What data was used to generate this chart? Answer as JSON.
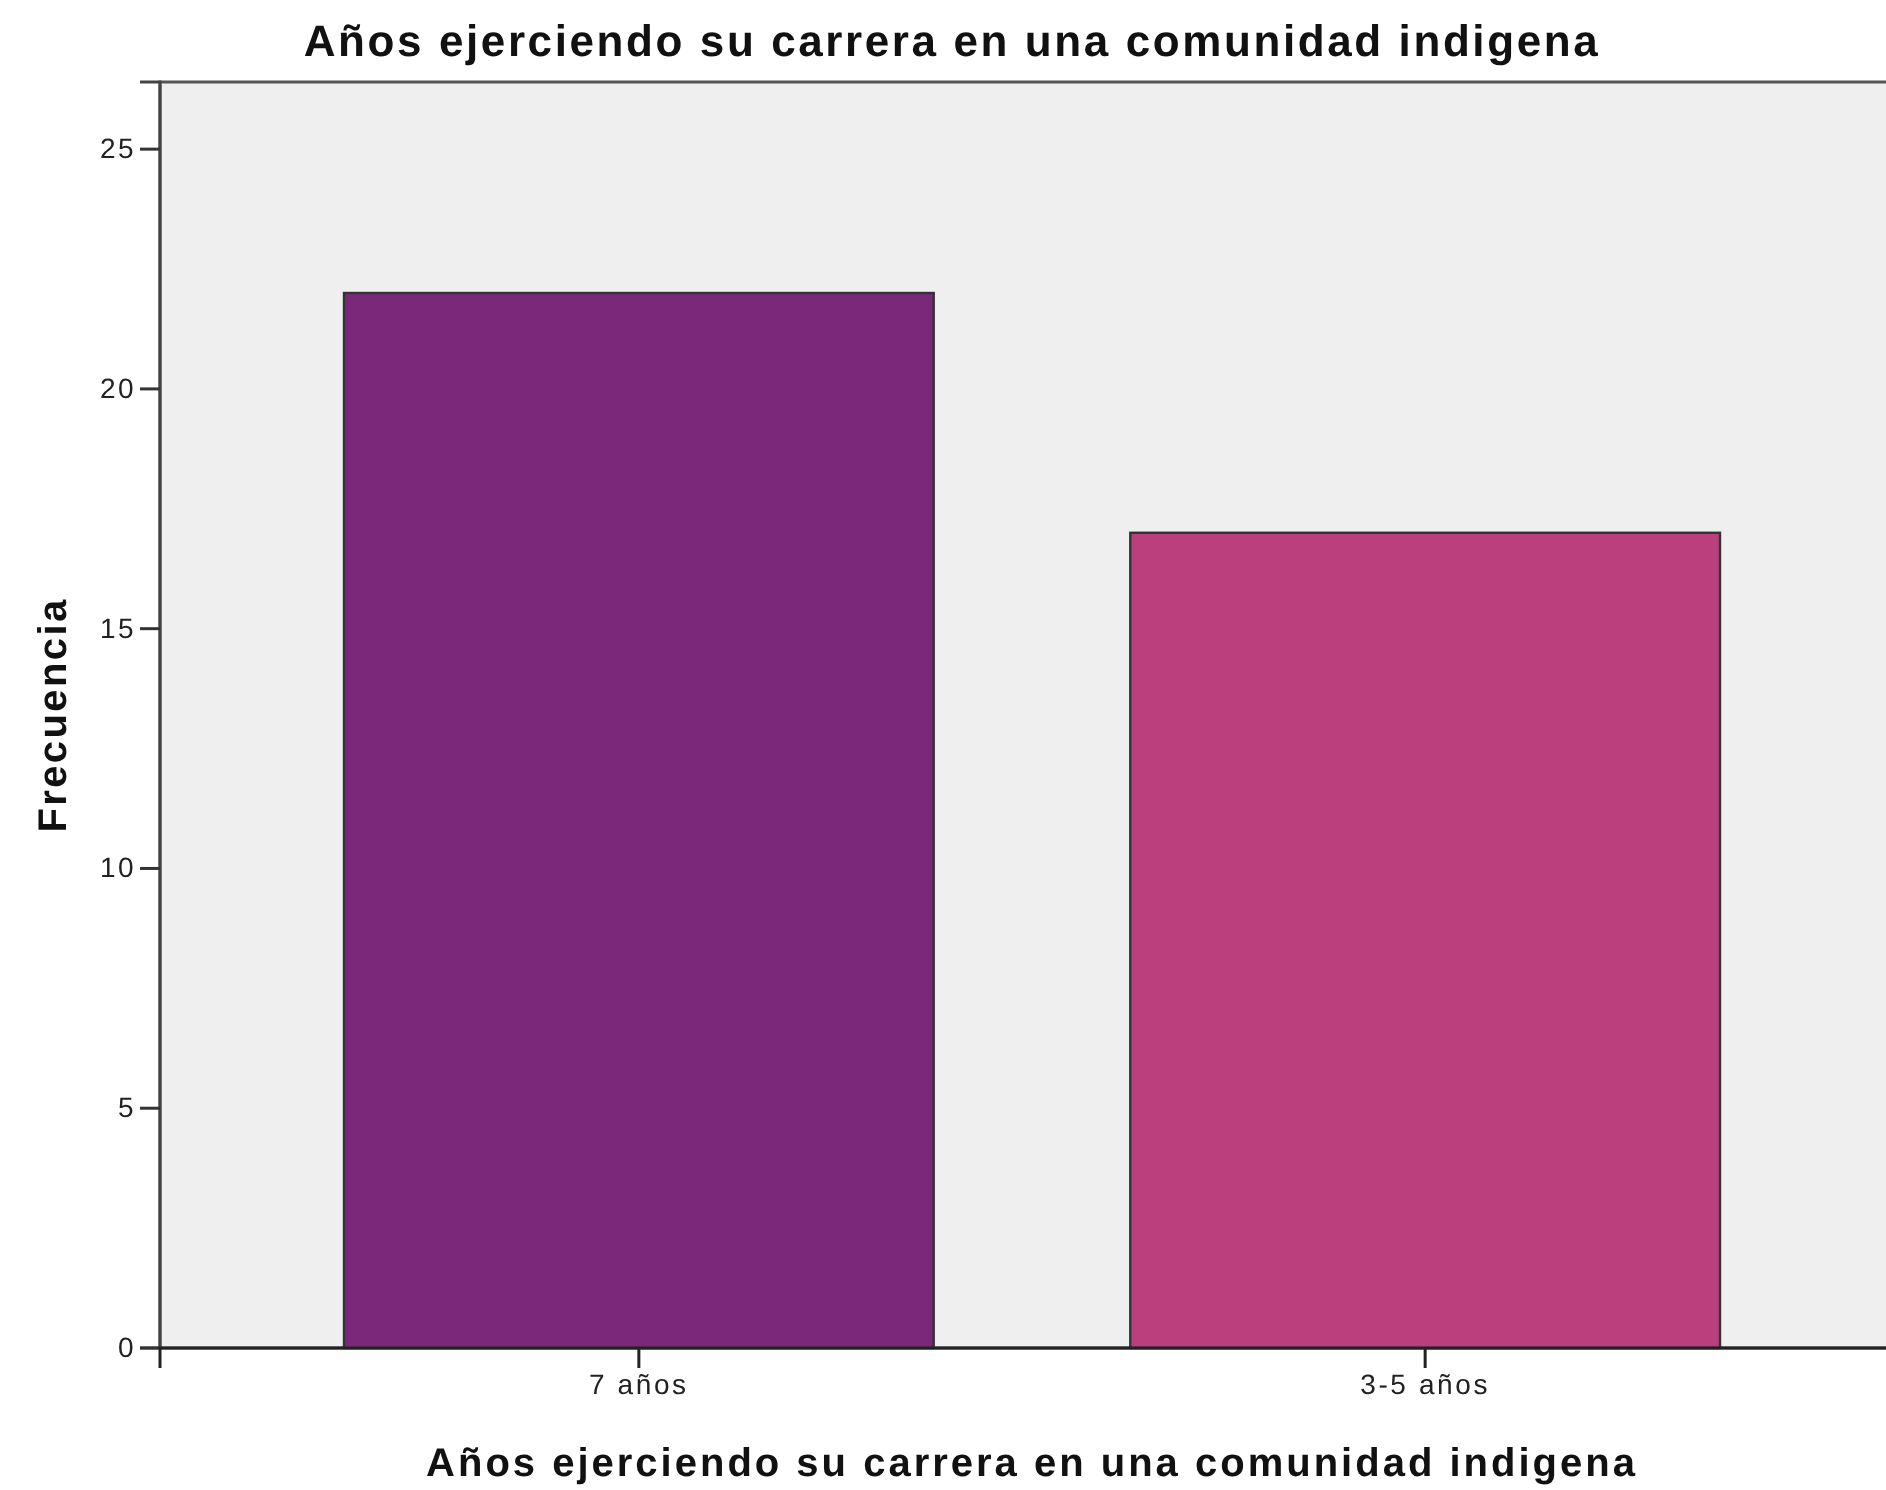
{
  "chart_data": {
    "type": "bar",
    "title": "Años ejerciendo su carrera en una comunidad indigena",
    "xlabel": "Años ejerciendo su carrera en una comunidad indigena",
    "ylabel": "Frecuencia",
    "categories": [
      "7 años",
      "3-5 años"
    ],
    "values": [
      22,
      17
    ],
    "colors": [
      "#7b287b",
      "#bb3f7c"
    ],
    "ylim": [
      0,
      26.4
    ],
    "yticks": [
      0,
      5,
      10,
      15,
      20,
      25
    ],
    "grid": false,
    "legend": false
  }
}
